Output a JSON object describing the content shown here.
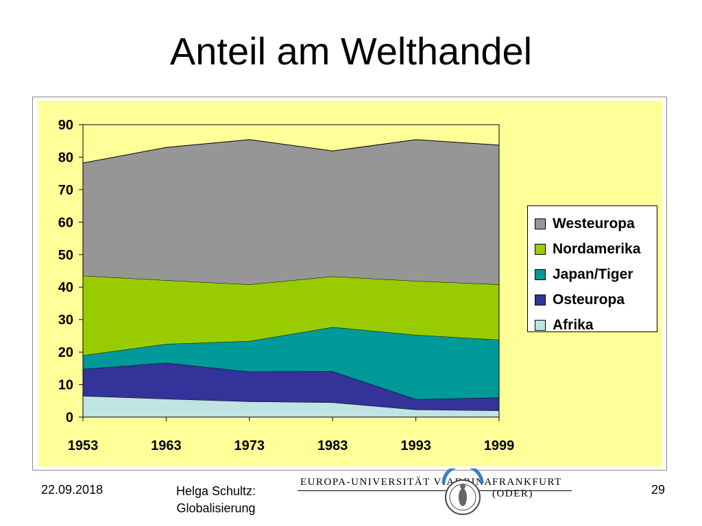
{
  "slide": {
    "title": "Anteil am Welthandel",
    "footer_date": "22.09.2018",
    "footer_author": "Helga Schultz: Globalisierung",
    "page_number": "29",
    "logo": {
      "left_text": "EUROPA-UNIVERSITÄT VIADRINA",
      "right_text": "FRANKFURT (ODER)"
    }
  },
  "chart_data": {
    "type": "area",
    "stacked": true,
    "categories": [
      "1953",
      "1963",
      "1973",
      "1983",
      "1993",
      "1999"
    ],
    "ylim": [
      0,
      90
    ],
    "yticks": [
      "0",
      "10",
      "20",
      "30",
      "40",
      "50",
      "60",
      "70",
      "80",
      "90"
    ],
    "series": [
      {
        "name": "Afrika",
        "color": "#c0e4e4",
        "values": [
          6.5,
          5.6,
          4.8,
          4.5,
          2.3,
          2.0
        ]
      },
      {
        "name": "Osteuropa",
        "color": "#333399",
        "values": [
          8.3,
          11.1,
          9.2,
          9.6,
          3.2,
          4.0
        ]
      },
      {
        "name": "Japan/Tiger",
        "color": "#009999",
        "values": [
          4.2,
          5.8,
          9.4,
          13.6,
          19.8,
          17.8
        ]
      },
      {
        "name": "Nordamerika",
        "color": "#99cc00",
        "values": [
          24.5,
          19.6,
          17.4,
          15.6,
          16.6,
          17.0
        ]
      },
      {
        "name": "Westeuropa",
        "color": "#969696",
        "values": [
          34.7,
          40.9,
          44.6,
          38.6,
          43.5,
          42.9
        ]
      }
    ],
    "legend_order": [
      "Westeuropa",
      "Nordamerika",
      "Japan/Tiger",
      "Osteuropa",
      "Afrika"
    ],
    "legend_position": "right",
    "plot_background": "#ffff99",
    "grid": false
  }
}
